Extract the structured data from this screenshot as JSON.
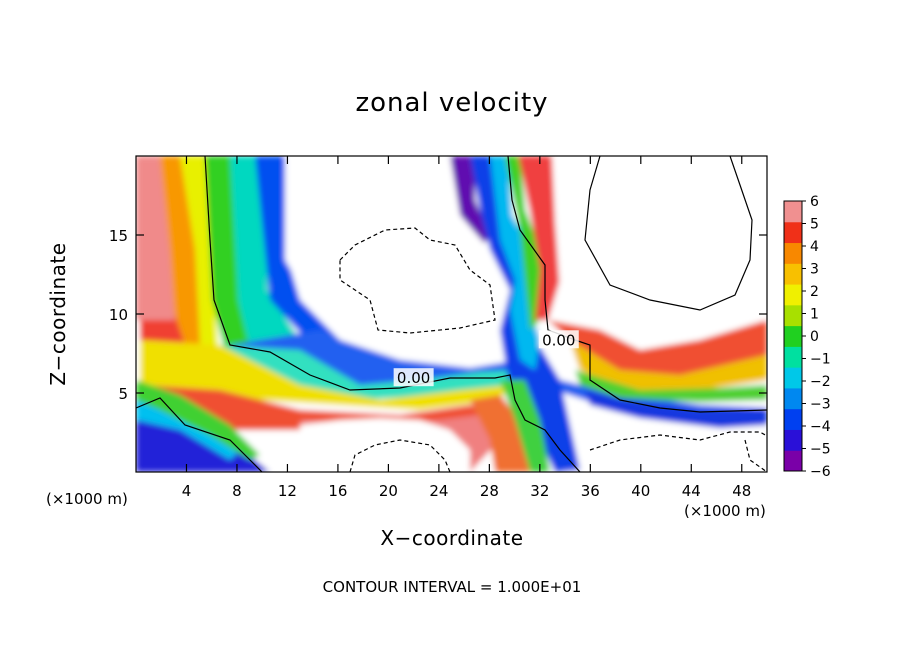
{
  "chart_data": {
    "type": "heatmap",
    "title": "zonal velocity",
    "xlabel": "X−coordinate",
    "ylabel": "Z−coordinate",
    "x_unit_label": "(×1000 m)",
    "footnote": "CONTOUR INTERVAL = 1.000E+01",
    "xlim": [
      0,
      50
    ],
    "ylim": [
      0,
      20
    ],
    "x_ticks": [
      4,
      8,
      12,
      16,
      20,
      24,
      28,
      32,
      36,
      40,
      44,
      48
    ],
    "y_ticks": [
      5,
      10,
      15
    ],
    "colorbar": {
      "min": -6,
      "max": 6,
      "tick_values": [
        6,
        5,
        4,
        3,
        2,
        1,
        0,
        -1,
        -2,
        -3,
        -4,
        -5,
        -6
      ],
      "tick_labels": [
        "6",
        "5",
        "4",
        "3",
        "2",
        "1",
        "0",
        "−1",
        "−2",
        "−3",
        "−4",
        "−5",
        "−6"
      ],
      "colors": [
        "#7a00a8",
        "#2a10d8",
        "#0040f0",
        "#0088f0",
        "#00c8e8",
        "#00e0a0",
        "#20d020",
        "#a8e000",
        "#f0f000",
        "#f8c000",
        "#f88800",
        "#f03018",
        "#f09090"
      ]
    },
    "contour_labels": [
      {
        "text": "0.00",
        "x": 22,
        "z": 6.0
      },
      {
        "text": "0.00",
        "x": 33.5,
        "z": 8.4
      }
    ],
    "grid": false,
    "legend": "colorbar-right"
  }
}
